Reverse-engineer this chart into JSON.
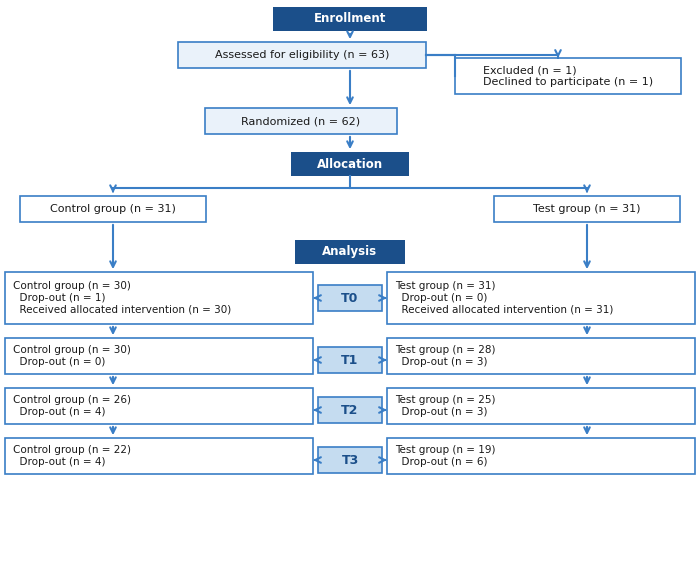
{
  "dark_blue": "#1B4F8A",
  "light_blue_fill": "#C5DCF0",
  "box_edge_blue": "#3A7EC6",
  "arrow_color": "#3A7EC6",
  "enrollment_label": "Enrollment",
  "allocation_label": "Allocation",
  "analysis_label": "Analysis",
  "assessed_text": "Assessed for eligibility (n = 63)",
  "excluded_text": "Excluded (n = 1)\nDeclined to participate (n = 1)",
  "randomized_text": "Randomized (n = 62)",
  "control_alloc_text": "Control group (n = 31)",
  "test_alloc_text": "Test group (n = 31)",
  "t0_control_text": "Control group (n = 30)\n  Drop-out (n = 1)\n  Received allocated intervention (n = 30)",
  "t0_test_text": "Test group (n = 31)\n  Drop-out (n = 0)\n  Received allocated intervention (n = 31)",
  "t1_control_text": "Control group (n = 30)\n  Drop-out (n = 0)",
  "t1_test_text": "Test group (n = 28)\n  Drop-out (n = 3)",
  "t2_control_text": "Control group (n = 26)\n  Drop-out (n = 4)",
  "t2_test_text": "Test group (n = 25)\n  Drop-out (n = 3)",
  "t3_control_text": "Control group (n = 22)\n  Drop-out (n = 4)",
  "t3_test_text": "Test group (n = 19)\n  Drop-out (n = 6)",
  "figw": 7.0,
  "figh": 5.87,
  "dpi": 100
}
